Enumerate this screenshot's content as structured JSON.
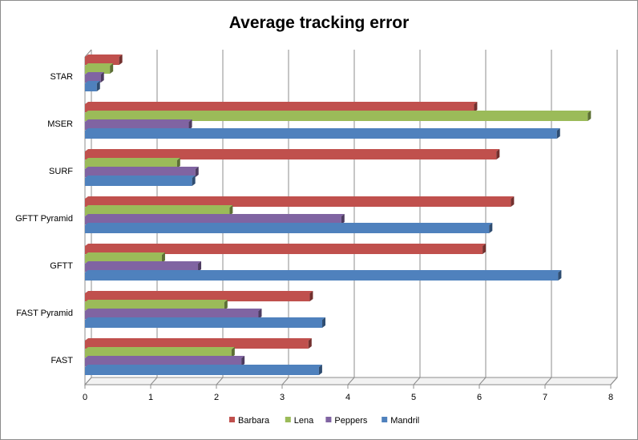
{
  "colors": {
    "Barbara": "#c0504d",
    "Lena": "#9bbb59",
    "Peppers": "#8064a2",
    "Mandril": "#4f81bd"
  },
  "chart_data": {
    "type": "bar",
    "orientation": "horizontal",
    "style": "3d",
    "title": "Average tracking error",
    "xlabel": "",
    "ylabel": "",
    "xlim": [
      0,
      8
    ],
    "x_ticks": [
      "0",
      "1",
      "2",
      "3",
      "4",
      "5",
      "6",
      "7",
      "8"
    ],
    "grid": "vertical",
    "legend_position": "bottom",
    "categories": [
      "FAST",
      "FAST Pyramid",
      "GFTT",
      "GFTT Pyramid",
      "SURF",
      "MSER",
      "STAR"
    ],
    "series": [
      {
        "name": "Barbara",
        "values": [
          3.4,
          3.42,
          6.05,
          6.48,
          6.26,
          5.92,
          0.52
        ]
      },
      {
        "name": "Lena",
        "values": [
          2.23,
          2.12,
          1.17,
          2.2,
          1.4,
          7.65,
          0.38
        ]
      },
      {
        "name": "Peppers",
        "values": [
          2.38,
          2.64,
          1.72,
          3.9,
          1.68,
          1.58,
          0.24
        ]
      },
      {
        "name": "Mandril",
        "values": [
          3.56,
          3.61,
          7.2,
          6.15,
          1.63,
          7.18,
          0.18
        ]
      }
    ]
  }
}
